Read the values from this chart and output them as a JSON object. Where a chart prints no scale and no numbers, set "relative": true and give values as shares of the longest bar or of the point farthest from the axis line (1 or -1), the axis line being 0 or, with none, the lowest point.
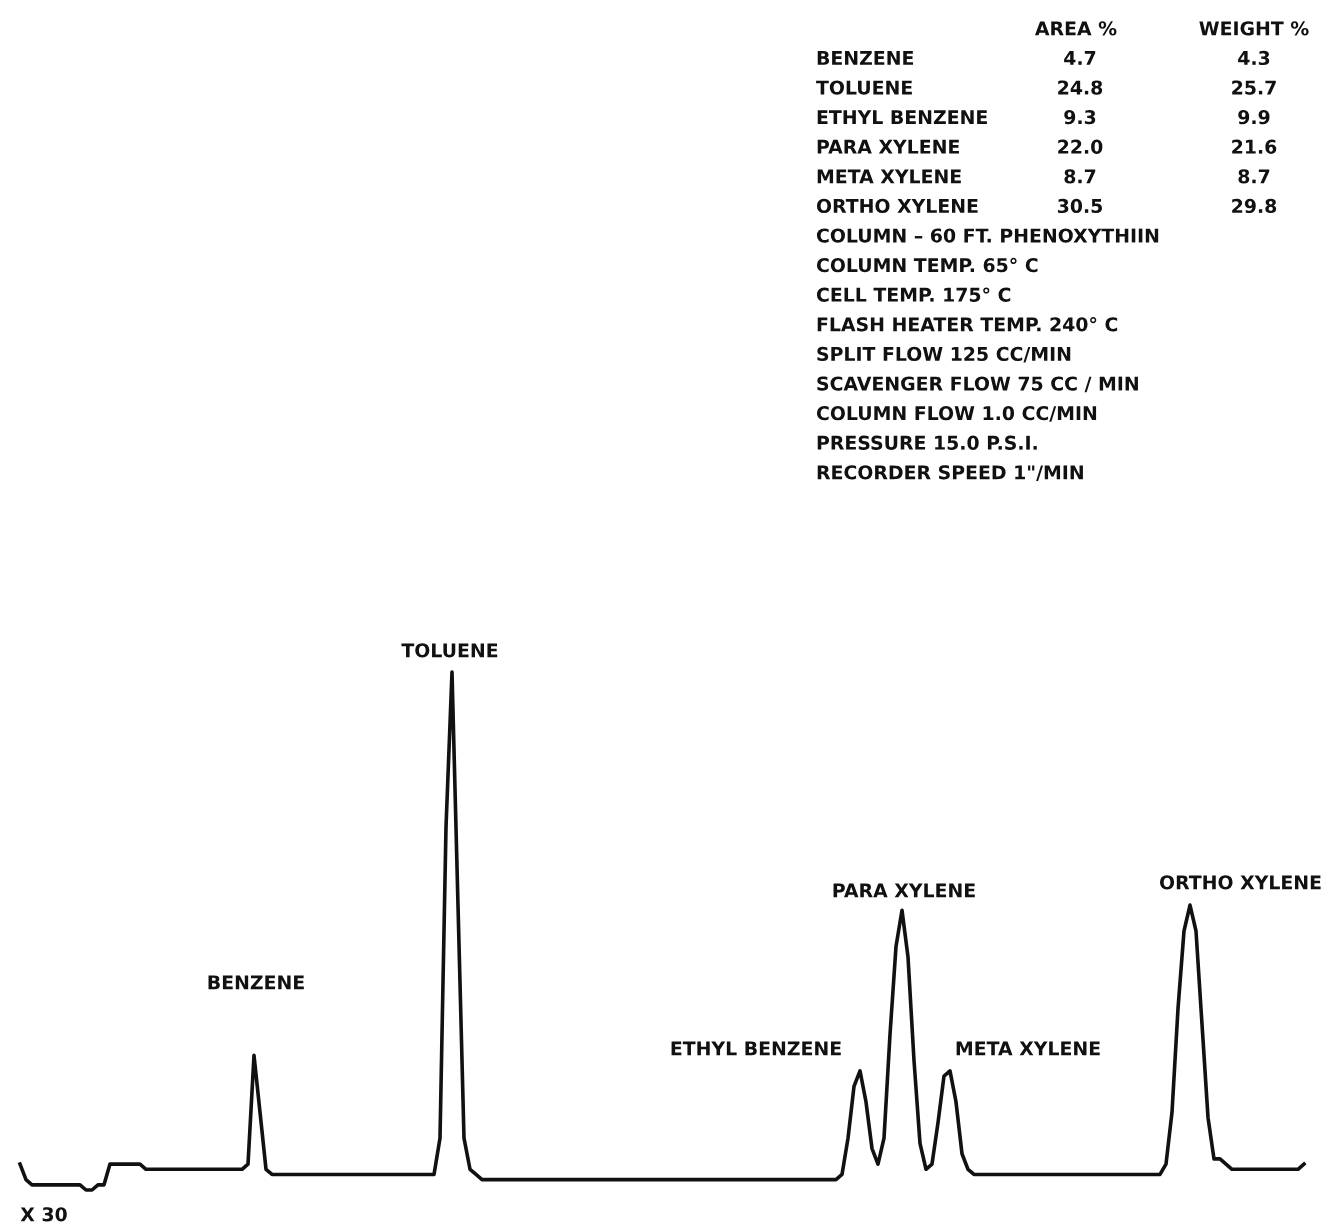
{
  "chart_data": {
    "type": "line",
    "relative": true,
    "marker": "none",
    "line_style": "solid",
    "categories": [
      null,
      null,
      null,
      null,
      null,
      null,
      null,
      null,
      null,
      null,
      null,
      null,
      null,
      null,
      null,
      null,
      null,
      null,
      null,
      null,
      null,
      null,
      null,
      null,
      null,
      null,
      null,
      null,
      null,
      null,
      null,
      null,
      null,
      null,
      null,
      null,
      null,
      null,
      null,
      null,
      null,
      null,
      null,
      null,
      null,
      null,
      null,
      null,
      null,
      null,
      null,
      null,
      null,
      null,
      null,
      null,
      null,
      null,
      null,
      null,
      null,
      null,
      null,
      null,
      null,
      null,
      null,
      null,
      null,
      null,
      null,
      null,
      null,
      null,
      null,
      null,
      null,
      null,
      null,
      null,
      null,
      null,
      null,
      null,
      null,
      null,
      null,
      null,
      null,
      null,
      null,
      null,
      null,
      null,
      null,
      null,
      null,
      null,
      null,
      null,
      null,
      null,
      null,
      null,
      null,
      null,
      null,
      null,
      null,
      null,
      null,
      null,
      null,
      null,
      null,
      null,
      null,
      null,
      null,
      null,
      null,
      null,
      null,
      null,
      null,
      null,
      null,
      null,
      null,
      null,
      null,
      null,
      null,
      null,
      null,
      null,
      null,
      null,
      null,
      null,
      null,
      null,
      null,
      null,
      null,
      null,
      null,
      null,
      null,
      null,
      null,
      null,
      null,
      null,
      null,
      null,
      null,
      null,
      null,
      null,
      null,
      null,
      null,
      null,
      null,
      null,
      null,
      null,
      null,
      null,
      null,
      null,
      null,
      null,
      null,
      null,
      null,
      null,
      null,
      null,
      null,
      null,
      null,
      null,
      null,
      null,
      null,
      null,
      null,
      null,
      null,
      null,
      null,
      null,
      null,
      null,
      null,
      null,
      null,
      null,
      null,
      null,
      null,
      null,
      null,
      null,
      null,
      null,
      null,
      null,
      null,
      null,
      null,
      null,
      null
    ],
    "series": [
      {
        "color": "#111111",
        "values": [
          0.05,
          0.02,
          0.01,
          0.01,
          0.01,
          0.01,
          0.01,
          0.01,
          0.01,
          0.01,
          0.01,
          0.0,
          0.0,
          0.01,
          0.01,
          0.05,
          0.05,
          0.05,
          0.05,
          0.05,
          0.05,
          0.04,
          0.04,
          0.04,
          0.04,
          0.04,
          0.04,
          0.04,
          0.04,
          0.04,
          0.04,
          0.04,
          0.04,
          0.04,
          0.04,
          0.04,
          0.04,
          0.04,
          0.05,
          0.26,
          0.15,
          0.04,
          0.03,
          0.03,
          0.03,
          0.03,
          0.03,
          0.03,
          0.03,
          0.03,
          0.03,
          0.03,
          0.03,
          0.03,
          0.03,
          0.03,
          0.03,
          0.03,
          0.03,
          0.03,
          0.03,
          0.03,
          0.03,
          0.03,
          0.03,
          0.03,
          0.03,
          0.03,
          0.03,
          0.03,
          0.1,
          0.7,
          1.0,
          0.55,
          0.1,
          0.04,
          0.03,
          0.02,
          0.02,
          0.02,
          0.02,
          0.02,
          0.02,
          0.02,
          0.02,
          0.02,
          0.02,
          0.02,
          0.02,
          0.02,
          0.02,
          0.02,
          0.02,
          0.02,
          0.02,
          0.02,
          0.02,
          0.02,
          0.02,
          0.02,
          0.02,
          0.02,
          0.02,
          0.02,
          0.02,
          0.02,
          0.02,
          0.02,
          0.02,
          0.02,
          0.02,
          0.02,
          0.02,
          0.02,
          0.02,
          0.02,
          0.02,
          0.02,
          0.02,
          0.02,
          0.02,
          0.02,
          0.02,
          0.02,
          0.02,
          0.02,
          0.02,
          0.02,
          0.02,
          0.02,
          0.02,
          0.02,
          0.02,
          0.02,
          0.02,
          0.02,
          0.02,
          0.03,
          0.1,
          0.2,
          0.23,
          0.17,
          0.08,
          0.05,
          0.1,
          0.3,
          0.47,
          0.54,
          0.45,
          0.25,
          0.09,
          0.04,
          0.05,
          0.13,
          0.22,
          0.23,
          0.17,
          0.07,
          0.04,
          0.03,
          0.03,
          0.03,
          0.03,
          0.03,
          0.03,
          0.03,
          0.03,
          0.03,
          0.03,
          0.03,
          0.03,
          0.03,
          0.03,
          0.03,
          0.03,
          0.03,
          0.03,
          0.03,
          0.03,
          0.03,
          0.03,
          0.03,
          0.03,
          0.03,
          0.03,
          0.03,
          0.03,
          0.03,
          0.03,
          0.03,
          0.03,
          0.05,
          0.15,
          0.35,
          0.5,
          0.55,
          0.5,
          0.32,
          0.14,
          0.06,
          0.06,
          0.05,
          0.04,
          0.04,
          0.04,
          0.04,
          0.04,
          0.04,
          0.04,
          0.04,
          0.04,
          0.04,
          0.04,
          0.04,
          0.05
        ]
      }
    ],
    "annotations": [
      "BENZENE",
      "TOLUENE",
      "ETHYL BENZENE",
      "PARA XYLENE",
      "META XYLENE",
      "ORTHO XYLENE",
      "X 30",
      "AREA %",
      "WEIGHT %",
      "BENZENE",
      "4.7",
      "4.3",
      "TOLUENE",
      "24.8",
      "25.7",
      "ETHYL BENZENE",
      "9.3",
      "9.9",
      "PARA XYLENE",
      "22.0",
      "21.6",
      "META XYLENE",
      "8.7",
      "8.7",
      "ORTHO XYLENE",
      "30.5",
      "29.8",
      "COLUMN – 60 FT. PHENOXYTHIIN",
      "COLUMN TEMP. 65° C",
      "CELL TEMP. 175° C",
      "FLASH HEATER TEMP. 240° C",
      "SPLIT FLOW 125 CC/MIN",
      "SCAVENGER FLOW 75 CC / MIN",
      "COLUMN FLOW 1.0 CC/MIN",
      "PRESSURE 15.0 P.S.I.",
      "RECORDER SPEED 1\"/MIN"
    ]
  }
}
